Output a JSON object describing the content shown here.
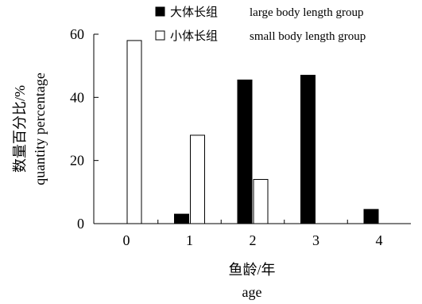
{
  "chart_data": {
    "type": "bar",
    "categories": [
      "0",
      "1",
      "2",
      "3",
      "4"
    ],
    "series": [
      {
        "name": "大体长组",
        "name_en": "large body length group",
        "values": [
          0,
          3.0,
          45.5,
          47.0,
          4.5
        ],
        "color": "#000000"
      },
      {
        "name": "小体长组",
        "name_en": "small body length group",
        "values": [
          58.0,
          28.0,
          14.0,
          0,
          0
        ],
        "color": "#ffffff"
      }
    ],
    "xlabel": "鱼龄/年",
    "xlabel_en": "age",
    "ylabel": "数量百分比/%",
    "ylabel_en": "quantity percentage",
    "ylim": [
      0,
      60
    ],
    "yticks": [
      0,
      20,
      40,
      60
    ],
    "grid": false,
    "legend_position": "top-right"
  }
}
